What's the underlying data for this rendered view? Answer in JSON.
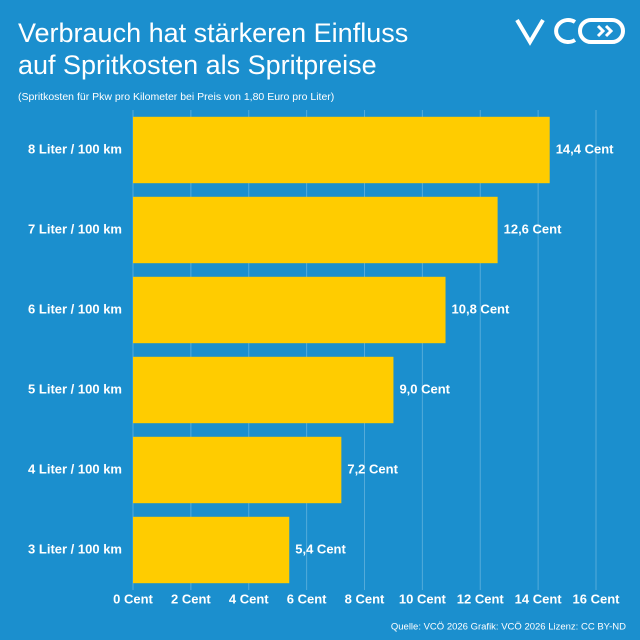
{
  "chart_data": {
    "type": "hbar",
    "title": [
      "Verbrauch hat stärkeren Einfluss",
      "auf Spritkosten als Spritpreise"
    ],
    "subtitle": "(Spritkosten für Pkw pro Kilometer bei Preis von 1,80 Euro pro Liter)",
    "categories": [
      "8 Liter / 100 km",
      "7 Liter / 100 km",
      "6 Liter / 100 km",
      "5 Liter / 100 km",
      "4 Liter / 100 km",
      "3 Liter / 100 km"
    ],
    "values": [
      14.4,
      12.6,
      10.8,
      9.0,
      7.2,
      5.4
    ],
    "value_labels": [
      "14,4 Cent",
      "12,6 Cent",
      "10,8 Cent",
      "9,0 Cent",
      "7,2 Cent",
      "5,4 Cent"
    ],
    "color": "#ffcc00",
    "xlim": [
      0,
      16
    ],
    "xticks": [
      {
        "value": 0,
        "label": "0 Cent"
      },
      {
        "value": 2,
        "label": "2 Cent"
      },
      {
        "value": 4,
        "label": "4 Cent"
      },
      {
        "value": 6,
        "label": "6 Cent"
      },
      {
        "value": 8,
        "label": "8 Cent"
      },
      {
        "value": 10,
        "label": "10 Cent"
      },
      {
        "value": 12,
        "label": "12 Cent"
      },
      {
        "value": 14,
        "label": "14 Cent"
      },
      {
        "value": 16,
        "label": "16 Cent"
      }
    ],
    "grid": true,
    "source": "Quelle: VCÖ 2026 Grafik: VCÖ 2026 Lizenz: CC BY-ND"
  }
}
